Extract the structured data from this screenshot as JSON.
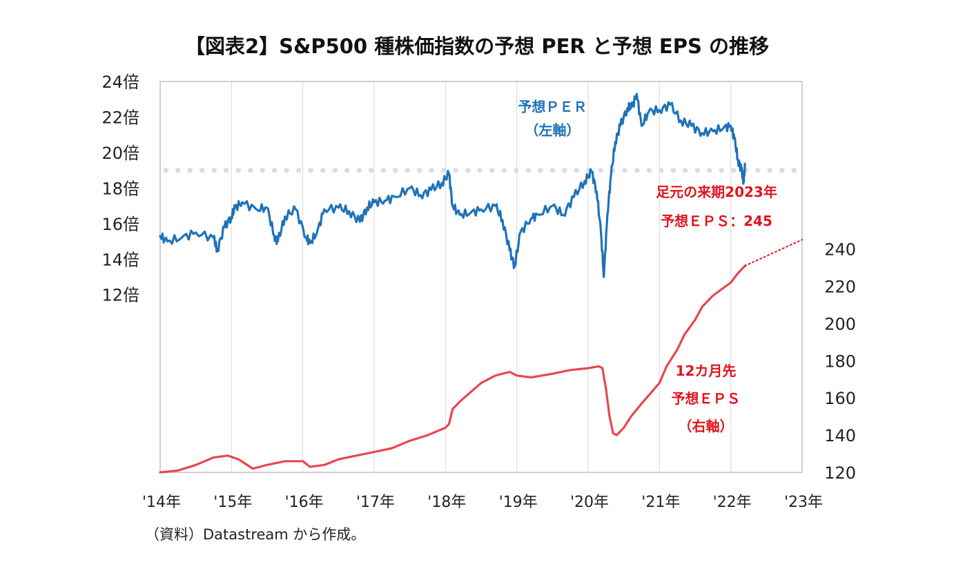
{
  "title": "【図表2】S&P500 種株価指数の予想 PER と予想 EPS の推移",
  "source": "（資料）Datastream から作成。",
  "colors": {
    "per": "#1f72b8",
    "eps": "#e8464e",
    "grid": "#d9d9d9",
    "border": "#cfcfcf",
    "avg_line": "#d9dcea",
    "annotation_red": "#e0141e"
  },
  "chart_data": {
    "type": "line",
    "x_ticks": [
      "'14年",
      "'15年",
      "'16年",
      "'17年",
      "'18年",
      "'19年",
      "'20年",
      "'21年",
      "'22年",
      "'23年"
    ],
    "x_range": [
      2014.0,
      2023.0
    ],
    "left_axis": {
      "ticks": [
        "12倍",
        "14倍",
        "16倍",
        "18倍",
        "20倍",
        "22倍",
        "24倍"
      ],
      "values": [
        12,
        14,
        16,
        18,
        20,
        22,
        24
      ],
      "range": [
        2,
        24
      ]
    },
    "right_axis": {
      "ticks": [
        "120",
        "140",
        "160",
        "180",
        "200",
        "220",
        "240"
      ],
      "values": [
        120,
        140,
        160,
        180,
        200,
        220,
        240
      ],
      "range": [
        120,
        330
      ]
    },
    "grid": "vertical",
    "reference_line": {
      "axis": "left",
      "value": 19.0,
      "style": "dotted"
    },
    "series": [
      {
        "name": "予想PER（左軸）",
        "axis": "left",
        "color": "#1f72b8",
        "x": [
          2014.0,
          2014.1,
          2014.3,
          2014.5,
          2014.75,
          2014.8,
          2014.9,
          2015.0,
          2015.05,
          2015.15,
          2015.35,
          2015.5,
          2015.6,
          2015.65,
          2015.75,
          2015.9,
          2016.05,
          2016.1,
          2016.2,
          2016.3,
          2016.5,
          2016.65,
          2016.8,
          2016.9,
          2017.0,
          2017.15,
          2017.3,
          2017.5,
          2017.65,
          2017.8,
          2017.95,
          2018.05,
          2018.1,
          2018.2,
          2018.35,
          2018.5,
          2018.7,
          2018.8,
          2018.9,
          2018.97,
          2019.05,
          2019.2,
          2019.3,
          2019.5,
          2019.65,
          2019.8,
          2019.95,
          2020.05,
          2020.12,
          2020.18,
          2020.22,
          2020.27,
          2020.32,
          2020.38,
          2020.45,
          2020.55,
          2020.62,
          2020.68,
          2020.75,
          2020.85,
          2021.0,
          2021.15,
          2021.3,
          2021.45,
          2021.6,
          2021.75,
          2021.9,
          2022.0,
          2022.05,
          2022.1,
          2022.15,
          2022.18,
          2022.2
        ],
        "y": [
          15.3,
          15.0,
          15.2,
          15.5,
          15.2,
          14.5,
          15.8,
          16.4,
          16.9,
          17.2,
          16.8,
          16.9,
          15.3,
          15.0,
          16.4,
          16.8,
          15.2,
          14.9,
          15.5,
          16.8,
          16.9,
          16.7,
          16.1,
          16.9,
          17.2,
          17.3,
          17.5,
          18.0,
          17.6,
          17.9,
          18.3,
          18.8,
          17.0,
          16.5,
          16.6,
          16.8,
          17.0,
          16.2,
          14.5,
          13.6,
          15.5,
          16.3,
          16.5,
          17.0,
          16.5,
          17.5,
          18.4,
          18.9,
          17.8,
          15.5,
          13.0,
          16.5,
          18.7,
          20.6,
          21.5,
          22.5,
          22.6,
          23.3,
          21.5,
          22.3,
          22.4,
          22.7,
          21.8,
          21.5,
          21.1,
          21.2,
          21.4,
          21.5,
          20.8,
          19.6,
          19.0,
          18.4,
          19.3
        ]
      },
      {
        "name": "12カ月先予想ＥＰＳ（右軸）",
        "axis": "right",
        "color": "#e8464e",
        "x": [
          2014.0,
          2014.25,
          2014.5,
          2014.75,
          2014.95,
          2015.1,
          2015.3,
          2015.5,
          2015.75,
          2016.0,
          2016.1,
          2016.3,
          2016.5,
          2016.75,
          2017.0,
          2017.25,
          2017.5,
          2017.75,
          2018.0,
          2018.05,
          2018.1,
          2018.2,
          2018.35,
          2018.5,
          2018.7,
          2018.9,
          2019.0,
          2019.2,
          2019.5,
          2019.75,
          2020.0,
          2020.15,
          2020.2,
          2020.25,
          2020.3,
          2020.35,
          2020.4,
          2020.5,
          2020.6,
          2020.75,
          2021.0,
          2021.1,
          2021.25,
          2021.35,
          2021.5,
          2021.6,
          2021.75,
          2022.0,
          2022.1,
          2022.2
        ],
        "y": [
          120,
          121,
          124,
          128,
          129,
          127,
          122,
          124,
          126,
          126,
          123,
          124,
          127,
          129,
          131,
          133,
          137,
          140,
          144,
          146,
          154,
          158,
          163,
          168,
          172,
          174,
          172,
          171,
          173,
          175,
          176,
          177,
          176,
          165,
          150,
          141,
          140,
          144,
          150,
          157,
          168,
          177,
          186,
          194,
          202,
          209,
          215,
          222,
          227,
          231
        ]
      },
      {
        "name": "予想EPS延長",
        "axis": "right",
        "color": "#e0141e",
        "style": "dotted",
        "x": [
          2022.2,
          2023.0
        ],
        "y": [
          231,
          245
        ]
      }
    ],
    "annotations": [
      {
        "lines": [
          "予想ＰＥＲ",
          "（左軸）"
        ],
        "color": "#1f72b8"
      },
      {
        "lines": [
          "足元の来期2023年",
          "予想ＥＰＳ：245"
        ],
        "color": "#e0141e"
      },
      {
        "lines": [
          "12カ月先",
          "予想ＥＰＳ",
          "（右軸）"
        ],
        "color": "#e0141e"
      }
    ]
  }
}
